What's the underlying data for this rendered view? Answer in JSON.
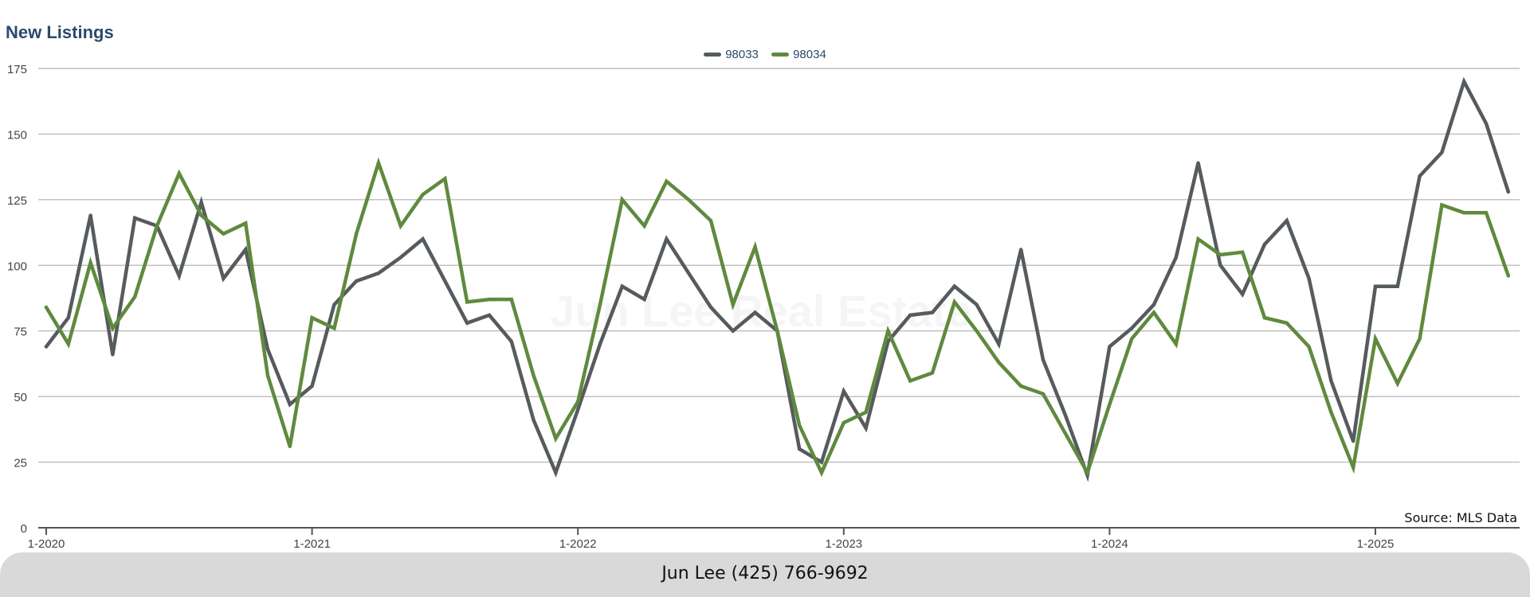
{
  "watermark": "Jun Lee Real Estate",
  "footer": {
    "contact": "Jun Lee (425) 766-9692"
  },
  "chart_data": {
    "type": "line",
    "title": "New Listings",
    "xlabel": "",
    "ylabel": "",
    "source": "Source: MLS Data",
    "ylim": [
      0,
      175
    ],
    "yticks": [
      0,
      25,
      50,
      75,
      100,
      125,
      150,
      175
    ],
    "x_range": [
      "1-2020",
      "7-2025"
    ],
    "x_tick_labels": [
      "1-2020",
      "1-2021",
      "1-2022",
      "1-2023",
      "1-2024",
      "1-2025"
    ],
    "x": [
      "1-2020",
      "2-2020",
      "3-2020",
      "4-2020",
      "5-2020",
      "6-2020",
      "7-2020",
      "8-2020",
      "9-2020",
      "10-2020",
      "11-2020",
      "12-2020",
      "1-2021",
      "2-2021",
      "3-2021",
      "4-2021",
      "5-2021",
      "6-2021",
      "7-2021",
      "8-2021",
      "9-2021",
      "10-2021",
      "11-2021",
      "12-2021",
      "1-2022",
      "2-2022",
      "3-2022",
      "4-2022",
      "5-2022",
      "6-2022",
      "7-2022",
      "8-2022",
      "9-2022",
      "10-2022",
      "11-2022",
      "12-2022",
      "1-2023",
      "2-2023",
      "3-2023",
      "4-2023",
      "5-2023",
      "6-2023",
      "7-2023",
      "8-2023",
      "9-2023",
      "10-2023",
      "11-2023",
      "12-2023",
      "1-2024",
      "2-2024",
      "3-2024",
      "4-2024",
      "5-2024",
      "6-2024",
      "7-2024",
      "8-2024",
      "9-2024",
      "10-2024",
      "11-2024",
      "12-2024",
      "1-2025",
      "2-2025",
      "3-2025",
      "4-2025",
      "5-2025",
      "6-2025",
      "7-2025"
    ],
    "grid": true,
    "legend_position": "top-center",
    "series": [
      {
        "name": "98033",
        "color": "#555b5e",
        "values": [
          69,
          80,
          119,
          66,
          118,
          115,
          96,
          124,
          95,
          106,
          68,
          47,
          54,
          85,
          94,
          97,
          103,
          110,
          94,
          78,
          81,
          71,
          41,
          21,
          45,
          70,
          92,
          87,
          110,
          97,
          84,
          75,
          82,
          75,
          30,
          25,
          52,
          38,
          71,
          81,
          82,
          92,
          85,
          70,
          106,
          64,
          43,
          20,
          69,
          76,
          85,
          103,
          139,
          100,
          89,
          108,
          117,
          95,
          56,
          33,
          92,
          92,
          134,
          143,
          170,
          154,
          128
        ]
      },
      {
        "name": "98034",
        "color": "#5f8a3e",
        "values": [
          84,
          70,
          101,
          76,
          88,
          115,
          135,
          119,
          112,
          116,
          58,
          31,
          80,
          76,
          112,
          139,
          115,
          127,
          133,
          86,
          87,
          87,
          58,
          34,
          48,
          85,
          125,
          115,
          132,
          125,
          117,
          85,
          107,
          75,
          39,
          21,
          40,
          44,
          75,
          56,
          59,
          86,
          75,
          63,
          54,
          51,
          36,
          21,
          47,
          72,
          82,
          70,
          110,
          104,
          105,
          80,
          78,
          69,
          44,
          23,
          72,
          55,
          72,
          123,
          120,
          120,
          96
        ]
      }
    ]
  }
}
